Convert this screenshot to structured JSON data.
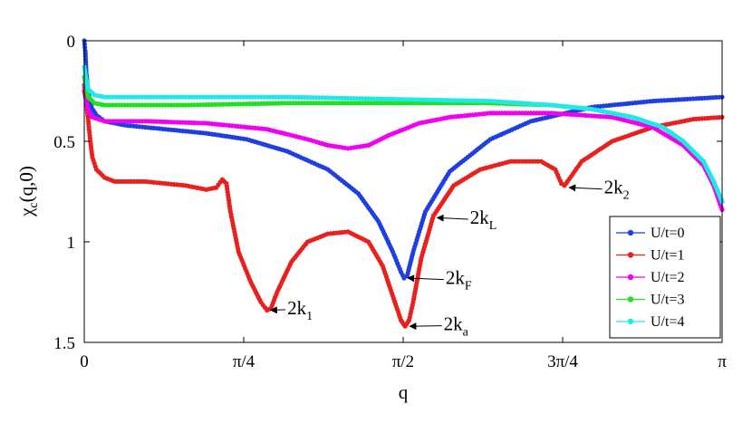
{
  "chart_data": {
    "type": "line",
    "ylabel": "χc(q,0)",
    "ylabel_main": "χ",
    "ylabel_sub": "c",
    "ylabel_rest": "(q,0)",
    "xlabel": "q",
    "xlim": [
      0,
      3.14159
    ],
    "ylim": [
      1.5,
      0
    ],
    "y_reversed": true,
    "grid": false,
    "legend_position": "bottom-right",
    "x_ticks": [
      {
        "value": 0,
        "label": "0"
      },
      {
        "value": 0.7854,
        "label": "π/4"
      },
      {
        "value": 1.5708,
        "label": "π/2"
      },
      {
        "value": 2.3562,
        "label": "3π/4"
      },
      {
        "value": 3.14159,
        "label": "π"
      }
    ],
    "y_ticks": [
      {
        "value": 0,
        "label": "0"
      },
      {
        "value": 0.5,
        "label": "0.5"
      },
      {
        "value": 1,
        "label": "1"
      },
      {
        "value": 1.5,
        "label": "1.5"
      }
    ],
    "series": [
      {
        "name": "U/t=0",
        "color": "#1f3fe0",
        "points": [
          [
            0,
            0
          ],
          [
            0.005,
            0.05
          ],
          [
            0.01,
            0.16
          ],
          [
            0.02,
            0.26
          ],
          [
            0.03,
            0.31
          ],
          [
            0.04,
            0.34
          ],
          [
            0.06,
            0.37
          ],
          [
            0.1,
            0.4
          ],
          [
            0.2,
            0.42
          ],
          [
            0.4,
            0.44
          ],
          [
            0.6,
            0.46
          ],
          [
            0.8,
            0.49
          ],
          [
            1.0,
            0.55
          ],
          [
            1.2,
            0.64
          ],
          [
            1.35,
            0.76
          ],
          [
            1.45,
            0.9
          ],
          [
            1.52,
            1.05
          ],
          [
            1.56,
            1.15
          ],
          [
            1.575,
            1.18
          ],
          [
            1.59,
            1.17
          ],
          [
            1.62,
            1.05
          ],
          [
            1.68,
            0.85
          ],
          [
            1.8,
            0.65
          ],
          [
            2.0,
            0.49
          ],
          [
            2.2,
            0.4
          ],
          [
            2.5,
            0.33
          ],
          [
            2.8,
            0.3
          ],
          [
            3.14159,
            0.28
          ]
        ]
      },
      {
        "name": "U/t=1",
        "color": "#e8201e",
        "points": [
          [
            0,
            0.25
          ],
          [
            0.01,
            0.3
          ],
          [
            0.02,
            0.4
          ],
          [
            0.03,
            0.5
          ],
          [
            0.04,
            0.58
          ],
          [
            0.06,
            0.64
          ],
          [
            0.1,
            0.68
          ],
          [
            0.15,
            0.7
          ],
          [
            0.3,
            0.7
          ],
          [
            0.5,
            0.72
          ],
          [
            0.6,
            0.74
          ],
          [
            0.65,
            0.73
          ],
          [
            0.68,
            0.69
          ],
          [
            0.7,
            0.71
          ],
          [
            0.72,
            0.85
          ],
          [
            0.76,
            1.05
          ],
          [
            0.82,
            1.2
          ],
          [
            0.87,
            1.3
          ],
          [
            0.9,
            1.34
          ],
          [
            0.92,
            1.33
          ],
          [
            0.95,
            1.25
          ],
          [
            1.02,
            1.1
          ],
          [
            1.1,
            1.0
          ],
          [
            1.2,
            0.96
          ],
          [
            1.3,
            0.95
          ],
          [
            1.4,
            1.0
          ],
          [
            1.47,
            1.12
          ],
          [
            1.52,
            1.27
          ],
          [
            1.56,
            1.39
          ],
          [
            1.58,
            1.42
          ],
          [
            1.6,
            1.39
          ],
          [
            1.62,
            1.3
          ],
          [
            1.66,
            1.08
          ],
          [
            1.72,
            0.87
          ],
          [
            1.82,
            0.72
          ],
          [
            1.95,
            0.64
          ],
          [
            2.1,
            0.6
          ],
          [
            2.25,
            0.6
          ],
          [
            2.32,
            0.64
          ],
          [
            2.35,
            0.71
          ],
          [
            2.365,
            0.72
          ],
          [
            2.38,
            0.7
          ],
          [
            2.45,
            0.6
          ],
          [
            2.6,
            0.5
          ],
          [
            2.8,
            0.43
          ],
          [
            3.0,
            0.39
          ],
          [
            3.14159,
            0.38
          ]
        ]
      },
      {
        "name": "U/t=2",
        "color": "#f000f0",
        "points": [
          [
            0,
            0.22
          ],
          [
            0.01,
            0.3
          ],
          [
            0.02,
            0.35
          ],
          [
            0.04,
            0.38
          ],
          [
            0.1,
            0.4
          ],
          [
            0.3,
            0.4
          ],
          [
            0.6,
            0.41
          ],
          [
            0.9,
            0.44
          ],
          [
            1.1,
            0.49
          ],
          [
            1.2,
            0.52
          ],
          [
            1.3,
            0.535
          ],
          [
            1.4,
            0.52
          ],
          [
            1.5,
            0.47
          ],
          [
            1.65,
            0.41
          ],
          [
            1.8,
            0.38
          ],
          [
            2.0,
            0.36
          ],
          [
            2.3,
            0.36
          ],
          [
            2.6,
            0.38
          ],
          [
            2.8,
            0.43
          ],
          [
            2.95,
            0.52
          ],
          [
            3.05,
            0.62
          ],
          [
            3.1,
            0.72
          ],
          [
            3.14159,
            0.84
          ]
        ]
      },
      {
        "name": "U/t=3",
        "color": "#20e020",
        "points": [
          [
            0,
            0.18
          ],
          [
            0.01,
            0.24
          ],
          [
            0.02,
            0.28
          ],
          [
            0.05,
            0.31
          ],
          [
            0.1,
            0.32
          ],
          [
            0.5,
            0.32
          ],
          [
            1.0,
            0.31
          ],
          [
            1.5,
            0.31
          ],
          [
            2.0,
            0.31
          ],
          [
            2.3,
            0.32
          ],
          [
            2.5,
            0.34
          ],
          [
            2.7,
            0.38
          ],
          [
            2.85,
            0.43
          ],
          [
            2.95,
            0.5
          ],
          [
            3.05,
            0.6
          ],
          [
            3.1,
            0.7
          ],
          [
            3.14159,
            0.8
          ]
        ]
      },
      {
        "name": "U/t=4",
        "color": "#20e8e8",
        "points": [
          [
            0,
            0.13
          ],
          [
            0.01,
            0.19
          ],
          [
            0.02,
            0.24
          ],
          [
            0.05,
            0.27
          ],
          [
            0.1,
            0.28
          ],
          [
            0.5,
            0.28
          ],
          [
            1.0,
            0.28
          ],
          [
            1.5,
            0.29
          ],
          [
            2.0,
            0.3
          ],
          [
            2.3,
            0.32
          ],
          [
            2.5,
            0.34
          ],
          [
            2.7,
            0.38
          ],
          [
            2.85,
            0.43
          ],
          [
            2.95,
            0.5
          ],
          [
            3.05,
            0.6
          ],
          [
            3.1,
            0.7
          ],
          [
            3.14159,
            0.8
          ]
        ]
      }
    ],
    "annotations": [
      {
        "main": "2k",
        "sub": "1",
        "arrow_to": [
          0.9,
          1.34
        ],
        "text_at": [
          1.0,
          1.36
        ]
      },
      {
        "main": "2k",
        "sub": "a",
        "arrow_to": [
          1.585,
          1.42
        ],
        "text_at": [
          1.77,
          1.44
        ]
      },
      {
        "main": "2k",
        "sub": "F",
        "arrow_to": [
          1.575,
          1.18
        ],
        "text_at": [
          1.78,
          1.21
        ]
      },
      {
        "main": "2k",
        "sub": "L",
        "arrow_to": [
          1.72,
          0.88
        ],
        "text_at": [
          1.9,
          0.91
        ]
      },
      {
        "main": "2k",
        "sub": "2",
        "arrow_to": [
          2.37,
          0.73
        ],
        "text_at": [
          2.56,
          0.76
        ]
      }
    ]
  }
}
